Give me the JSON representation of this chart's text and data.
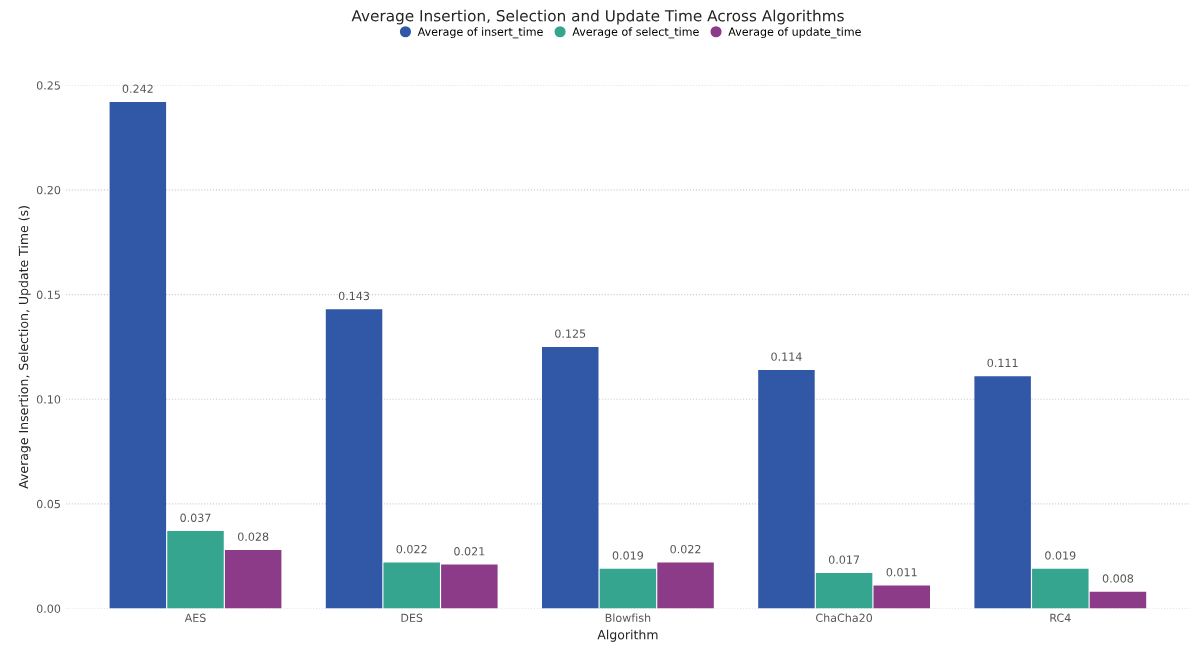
{
  "chart_data": {
    "type": "bar",
    "title": "Average Insertion, Selection and Update Time Across Algorithms",
    "xlabel": "Algorithm",
    "ylabel": "Average Insertion, Selection, Update Time (s)",
    "categories": [
      "AES",
      "DES",
      "Blowfish",
      "ChaCha20",
      "RC4"
    ],
    "series": [
      {
        "name": "Average of insert_time",
        "color": "#3157a7",
        "values": [
          0.242,
          0.143,
          0.125,
          0.114,
          0.111
        ]
      },
      {
        "name": "Average of select_time",
        "color": "#35a58f",
        "values": [
          0.037,
          0.022,
          0.019,
          0.017,
          0.019
        ]
      },
      {
        "name": "Average of update_time",
        "color": "#8b3b87",
        "values": [
          0.028,
          0.021,
          0.022,
          0.011,
          0.008
        ]
      }
    ],
    "ylim": [
      0,
      0.25
    ],
    "yticks": [
      {
        "value": 0,
        "label": "0.00"
      },
      {
        "value": 0.05,
        "label": "0.05"
      },
      {
        "value": 0.1,
        "label": "0.10"
      },
      {
        "value": 0.15,
        "label": "0.15"
      },
      {
        "value": 0.2,
        "label": "0.20"
      },
      {
        "value": 0.25,
        "label": "0.25"
      }
    ],
    "grid": "y",
    "legend": "top",
    "data_labels": true
  }
}
